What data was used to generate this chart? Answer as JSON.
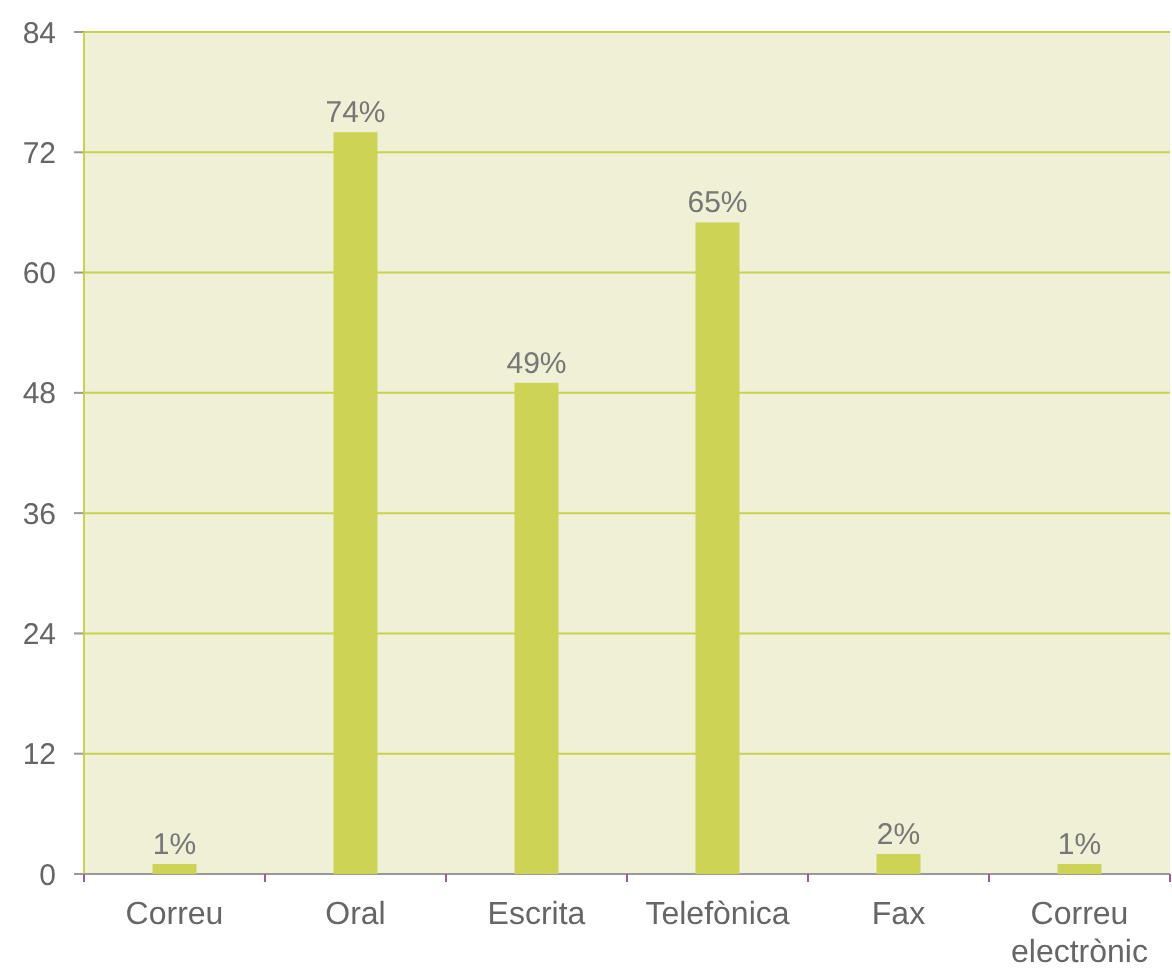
{
  "chart_data": {
    "type": "bar",
    "categories": [
      "Correu",
      "Oral",
      "Escrita",
      "Telefònica",
      "Fax",
      "Correu electrònic"
    ],
    "values": [
      1,
      74,
      49,
      65,
      2,
      1
    ],
    "value_labels": [
      "1%",
      "74%",
      "49%",
      "65%",
      "2%",
      "1%"
    ],
    "color": "#cdd455",
    "ylim": [
      0,
      84
    ],
    "yticks": [
      0,
      12,
      24,
      36,
      48,
      60,
      72,
      84
    ],
    "grid": "y"
  }
}
